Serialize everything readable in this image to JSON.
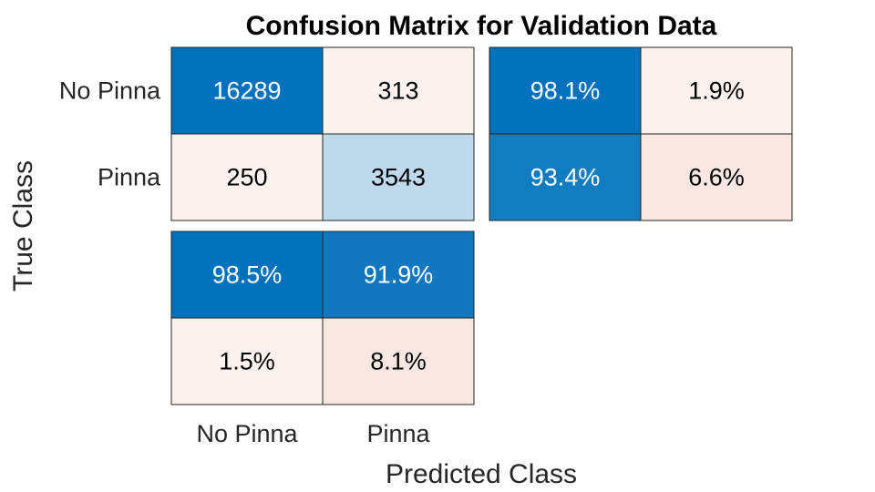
{
  "chart_data": {
    "type": "heatmap",
    "title": "Confusion Matrix for Validation Data",
    "xlabel": "Predicted Class",
    "ylabel": "True Class",
    "classes": [
      "No Pinna",
      "Pinna"
    ],
    "matrix": [
      [
        16289,
        313
      ],
      [
        250,
        3543
      ]
    ],
    "row_summary": [
      [
        "98.1%",
        "1.9%"
      ],
      [
        "93.4%",
        "6.6%"
      ]
    ],
    "column_summary": [
      [
        "98.5%",
        "91.9%"
      ],
      [
        "1.5%",
        "8.1%"
      ]
    ],
    "colors": {
      "diag_strong": "#0072bd",
      "diag_light": "#bfd9ec",
      "off_light": "#fbf2ee",
      "off_medium": "#f8e7e0",
      "row_sum_blue": "#0072bd",
      "row_sum_blue2": "#127cc1",
      "col_sum_blue2": "#1178c0",
      "text_dark": "#000000",
      "text_light": "#ffffff"
    }
  }
}
